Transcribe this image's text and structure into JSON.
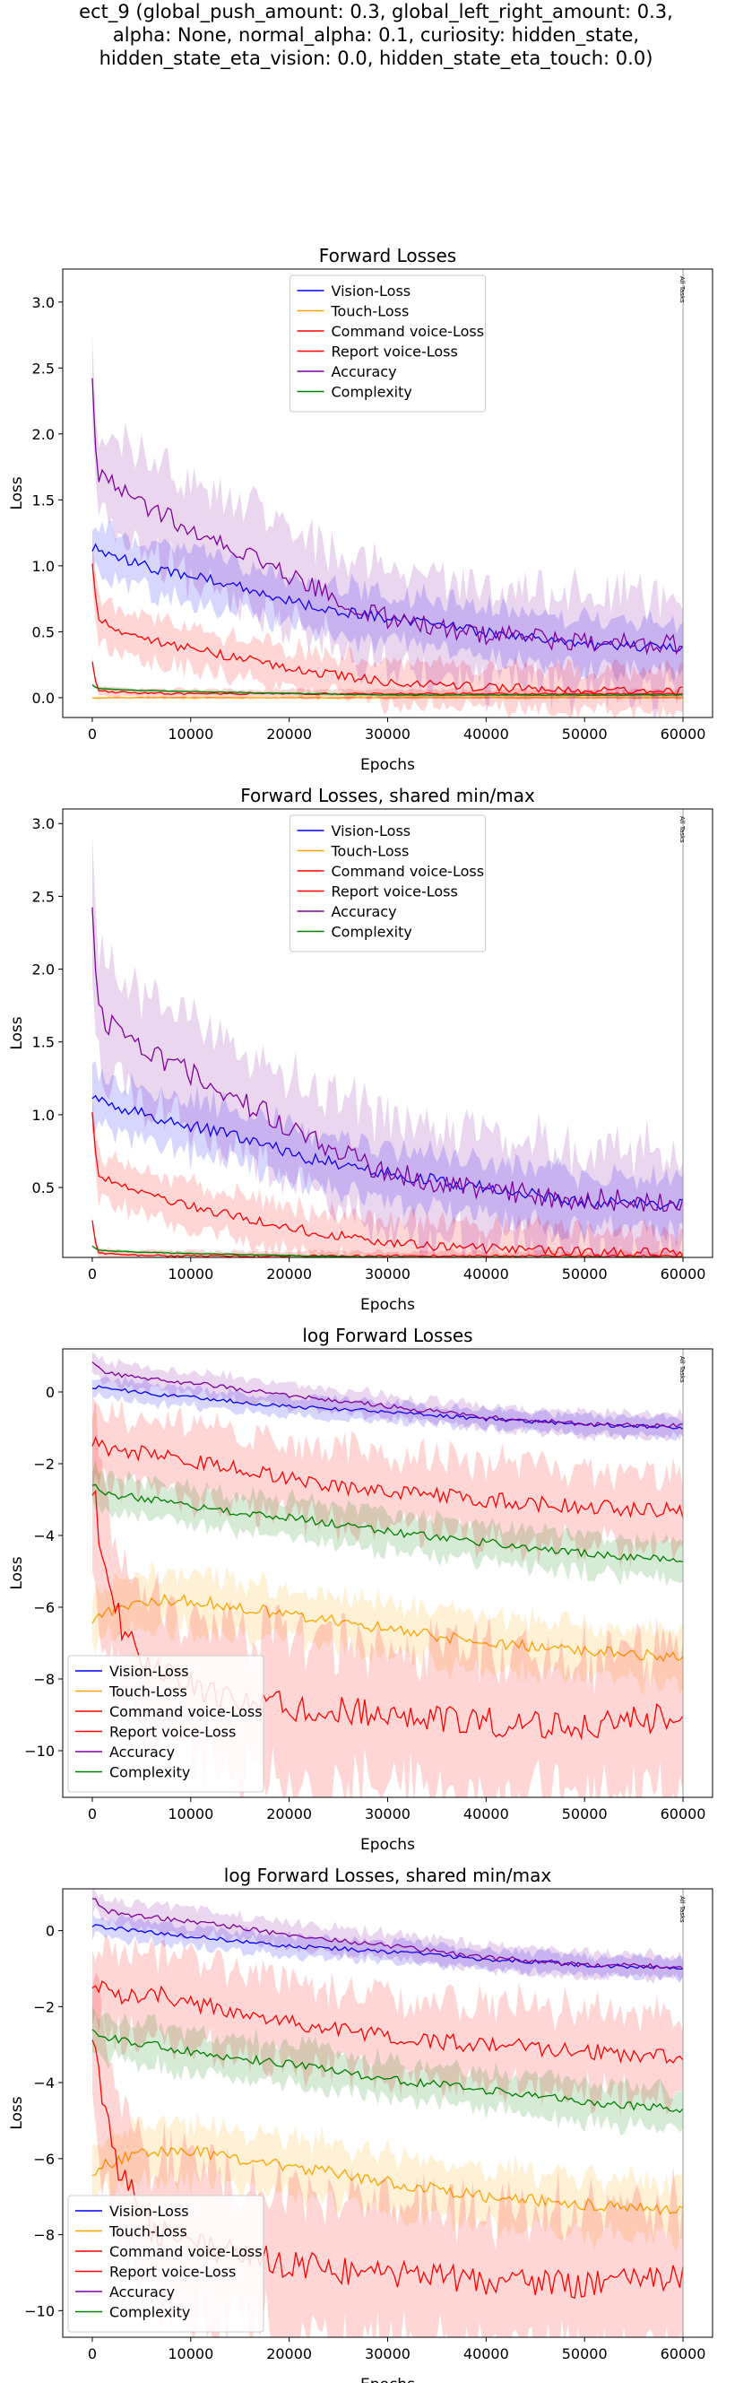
{
  "figure": {
    "title_lines": [
      "ect_9 (global_push_amount: 0.3, global_left_right_amount: 0.3,",
      "alpha: None, normal_alpha: 0.1, curiosity: hidden_state,",
      "hidden_state_eta_vision: 0.0, hidden_state_eta_touch: 0.0)"
    ]
  },
  "chart_data": [
    {
      "type": "line",
      "title": "Forward Losses",
      "xlabel": "Epochs",
      "ylabel": "Loss",
      "xlim": [
        -3000,
        63000
      ],
      "ylim": [
        -0.15,
        3.25
      ],
      "xticks": [
        0,
        10000,
        20000,
        30000,
        40000,
        50000,
        60000
      ],
      "yticks": [
        0.0,
        0.5,
        1.0,
        1.5,
        2.0,
        2.5,
        3.0
      ],
      "ytick_labels": [
        "0.0",
        "0.5",
        "1.0",
        "1.5",
        "2.0",
        "2.5",
        "3.0"
      ],
      "legend_position": "upper center",
      "vline": {
        "x": 60000,
        "label": "All Tasks"
      },
      "x": [
        0,
        500,
        3000,
        8000,
        15000,
        22000,
        30000,
        40000,
        50000,
        60000
      ],
      "series": [
        {
          "name": "Vision-Loss",
          "color": "#0000ff",
          "values": [
            1.15,
            1.12,
            1.05,
            0.95,
            0.85,
            0.7,
            0.6,
            0.5,
            0.4,
            0.38
          ],
          "spread": 0.18
        },
        {
          "name": "Touch-Loss",
          "color": "#ffa500",
          "values": [
            0.0,
            0.0,
            0.0,
            0.0,
            0.0,
            0.0,
            0.0,
            0.0,
            0.0,
            0.0
          ],
          "spread": 0.01
        },
        {
          "name": "Command voice-Loss",
          "color": "#ff0000",
          "values": [
            0.28,
            0.05,
            0.04,
            0.03,
            0.03,
            0.03,
            0.03,
            0.03,
            0.03,
            0.03
          ],
          "spread": 0.03
        },
        {
          "name": "Report voice-Loss",
          "color": "#ff0000",
          "values": [
            1.05,
            0.6,
            0.5,
            0.4,
            0.3,
            0.2,
            0.12,
            0.08,
            0.06,
            0.05
          ],
          "spread": 0.15
        },
        {
          "name": "Accuracy",
          "color": "#8000a0",
          "values": [
            2.5,
            1.7,
            1.55,
            1.35,
            1.1,
            0.85,
            0.6,
            0.48,
            0.42,
            0.4
          ],
          "spread": 0.35
        },
        {
          "name": "Complexity",
          "color": "#008000",
          "values": [
            0.1,
            0.07,
            0.06,
            0.05,
            0.04,
            0.03,
            0.02,
            0.02,
            0.02,
            0.02
          ],
          "spread": 0.01
        }
      ]
    },
    {
      "type": "line",
      "title": "Forward Losses, shared min/max",
      "xlabel": "Epochs",
      "ylabel": "Loss",
      "xlim": [
        -3000,
        63000
      ],
      "ylim": [
        0.02,
        3.1
      ],
      "xticks": [
        0,
        10000,
        20000,
        30000,
        40000,
        50000,
        60000
      ],
      "yticks": [
        0.5,
        1.0,
        1.5,
        2.0,
        2.5,
        3.0
      ],
      "ytick_labels": [
        "0.5",
        "1.0",
        "1.5",
        "2.0",
        "2.5",
        "3.0"
      ],
      "legend_position": "upper center",
      "vline": {
        "x": 60000,
        "label": "All Tasks"
      },
      "x": [
        0,
        500,
        3000,
        8000,
        15000,
        22000,
        30000,
        40000,
        50000,
        60000
      ],
      "series": [
        {
          "name": "Vision-Loss",
          "color": "#0000ff",
          "values": [
            1.15,
            1.12,
            1.05,
            0.95,
            0.85,
            0.7,
            0.6,
            0.5,
            0.4,
            0.38
          ],
          "spread": 0.18
        },
        {
          "name": "Touch-Loss",
          "color": "#ffa500",
          "values": [
            0.0,
            0.0,
            0.0,
            0.0,
            0.0,
            0.0,
            0.0,
            0.0,
            0.0,
            0.0
          ],
          "spread": 0.01
        },
        {
          "name": "Command voice-Loss",
          "color": "#ff0000",
          "values": [
            0.28,
            0.05,
            0.04,
            0.03,
            0.03,
            0.03,
            0.03,
            0.03,
            0.03,
            0.03
          ],
          "spread": 0.03
        },
        {
          "name": "Report voice-Loss",
          "color": "#ff0000",
          "values": [
            1.05,
            0.6,
            0.5,
            0.4,
            0.3,
            0.2,
            0.12,
            0.08,
            0.06,
            0.05
          ],
          "spread": 0.15
        },
        {
          "name": "Accuracy",
          "color": "#8000a0",
          "values": [
            2.5,
            1.7,
            1.55,
            1.35,
            1.1,
            0.85,
            0.6,
            0.48,
            0.42,
            0.4
          ],
          "spread": 0.35
        },
        {
          "name": "Complexity",
          "color": "#008000",
          "values": [
            0.1,
            0.07,
            0.06,
            0.05,
            0.04,
            0.03,
            0.02,
            0.02,
            0.02,
            0.02
          ],
          "spread": 0.01
        }
      ]
    },
    {
      "type": "line",
      "title": "log Forward Losses",
      "xlabel": "Epochs",
      "ylabel": "Loss",
      "xlim": [
        -3000,
        63000
      ],
      "ylim": [
        -11.3,
        1.2
      ],
      "xticks": [
        0,
        10000,
        20000,
        30000,
        40000,
        50000,
        60000
      ],
      "yticks": [
        -10,
        -8,
        -6,
        -4,
        -2,
        0
      ],
      "ytick_labels": [
        "−10",
        "−8",
        "−6",
        "−4",
        "−2",
        "0"
      ],
      "legend_position": "lower left",
      "vline": {
        "x": 60000,
        "label": "All Tasks"
      },
      "x": [
        0,
        1000,
        3000,
        6000,
        10000,
        20000,
        30000,
        40000,
        50000,
        60000
      ],
      "series": [
        {
          "name": "Vision-Loss",
          "color": "#0000ff",
          "values": [
            0.15,
            0.1,
            0.05,
            -0.05,
            -0.15,
            -0.4,
            -0.55,
            -0.75,
            -0.9,
            -1.0
          ],
          "spread": 0.25
        },
        {
          "name": "Touch-Loss",
          "color": "#ffa500",
          "values": [
            -6.3,
            -6.2,
            -6.0,
            -5.8,
            -5.8,
            -6.2,
            -6.6,
            -7.0,
            -7.2,
            -7.4
          ],
          "spread": 0.7
        },
        {
          "name": "Command voice-Loss",
          "color": "#ff0000",
          "values": [
            -1.3,
            -1.5,
            -1.8,
            -1.6,
            -1.9,
            -2.4,
            -2.8,
            -3.0,
            -3.2,
            -3.3
          ],
          "spread": 1.0
        },
        {
          "name": "Report voice-Loss",
          "color": "#ff0000",
          "values": [
            -2.5,
            -4.5,
            -6.5,
            -7.8,
            -8.2,
            -8.8,
            -9.0,
            -9.2,
            -9.3,
            -9.0
          ],
          "spread": 1.8
        },
        {
          "name": "Accuracy",
          "color": "#8000a0",
          "values": [
            0.9,
            0.55,
            0.45,
            0.35,
            0.25,
            -0.1,
            -0.4,
            -0.7,
            -0.9,
            -0.95
          ],
          "spread": 0.3
        },
        {
          "name": "Complexity",
          "color": "#008000",
          "values": [
            -2.5,
            -2.8,
            -2.9,
            -3.0,
            -3.2,
            -3.5,
            -3.9,
            -4.2,
            -4.5,
            -4.7
          ],
          "spread": 0.5
        }
      ]
    },
    {
      "type": "line",
      "title": "log Forward Losses, shared min/max",
      "xlabel": "Epochs",
      "ylabel": "Loss",
      "xlim": [
        -3000,
        63000
      ],
      "ylim": [
        -10.7,
        1.1
      ],
      "xticks": [
        0,
        10000,
        20000,
        30000,
        40000,
        50000,
        60000
      ],
      "yticks": [
        -10,
        -8,
        -6,
        -4,
        -2,
        0
      ],
      "ytick_labels": [
        "−10",
        "−8",
        "−6",
        "−4",
        "−2",
        "0"
      ],
      "legend_position": "lower left",
      "vline": {
        "x": 60000,
        "label": "All Tasks"
      },
      "x": [
        0,
        1000,
        3000,
        6000,
        10000,
        20000,
        30000,
        40000,
        50000,
        60000
      ],
      "series": [
        {
          "name": "Vision-Loss",
          "color": "#0000ff",
          "values": [
            0.15,
            0.1,
            0.05,
            -0.05,
            -0.15,
            -0.4,
            -0.55,
            -0.75,
            -0.9,
            -1.0
          ],
          "spread": 0.25
        },
        {
          "name": "Touch-Loss",
          "color": "#ffa500",
          "values": [
            -6.3,
            -6.2,
            -6.0,
            -5.8,
            -5.8,
            -6.2,
            -6.6,
            -7.0,
            -7.2,
            -7.4
          ],
          "spread": 0.7
        },
        {
          "name": "Command voice-Loss",
          "color": "#ff0000",
          "values": [
            -1.3,
            -1.5,
            -1.8,
            -1.6,
            -1.9,
            -2.4,
            -2.8,
            -3.0,
            -3.2,
            -3.3
          ],
          "spread": 1.0
        },
        {
          "name": "Report voice-Loss",
          "color": "#ff0000",
          "values": [
            -2.5,
            -4.5,
            -6.5,
            -7.8,
            -8.2,
            -8.8,
            -9.0,
            -9.2,
            -9.3,
            -9.0
          ],
          "spread": 1.8
        },
        {
          "name": "Accuracy",
          "color": "#8000a0",
          "values": [
            0.9,
            0.55,
            0.45,
            0.35,
            0.25,
            -0.1,
            -0.4,
            -0.7,
            -0.9,
            -0.95
          ],
          "spread": 0.3
        },
        {
          "name": "Complexity",
          "color": "#008000",
          "values": [
            -2.5,
            -2.8,
            -2.9,
            -3.0,
            -3.2,
            -3.5,
            -3.9,
            -4.2,
            -4.5,
            -4.7
          ],
          "spread": 0.5
        }
      ]
    }
  ]
}
